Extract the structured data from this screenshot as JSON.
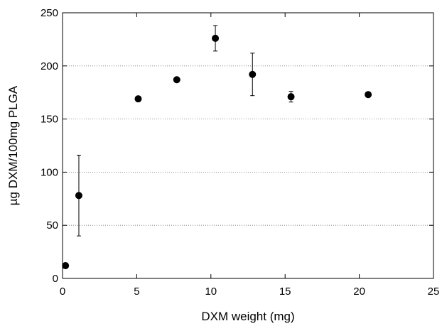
{
  "chart_data": {
    "type": "scatter",
    "title": "",
    "xlabel": "DXM weight (mg)",
    "ylabel": "µg DXM/100mg PLGA",
    "xlim": [
      0,
      25
    ],
    "ylim": [
      0,
      250
    ],
    "xticks": [
      0,
      5,
      10,
      15,
      20,
      25
    ],
    "yticks": [
      0,
      50,
      100,
      150,
      200,
      250
    ],
    "grid": "horizontal dotted",
    "legend": "none",
    "marker_color": "#000000",
    "series": [
      {
        "points": [
          {
            "x": 0.2,
            "y": 12,
            "err": 0
          },
          {
            "x": 1.1,
            "y": 78,
            "err": 38
          },
          {
            "x": 5.1,
            "y": 169,
            "err": 0
          },
          {
            "x": 7.7,
            "y": 187,
            "err": 0
          },
          {
            "x": 10.3,
            "y": 226,
            "err": 12
          },
          {
            "x": 12.8,
            "y": 192,
            "err": 20
          },
          {
            "x": 15.4,
            "y": 171,
            "err": 5
          },
          {
            "x": 20.6,
            "y": 173,
            "err": 0
          }
        ]
      }
    ]
  }
}
